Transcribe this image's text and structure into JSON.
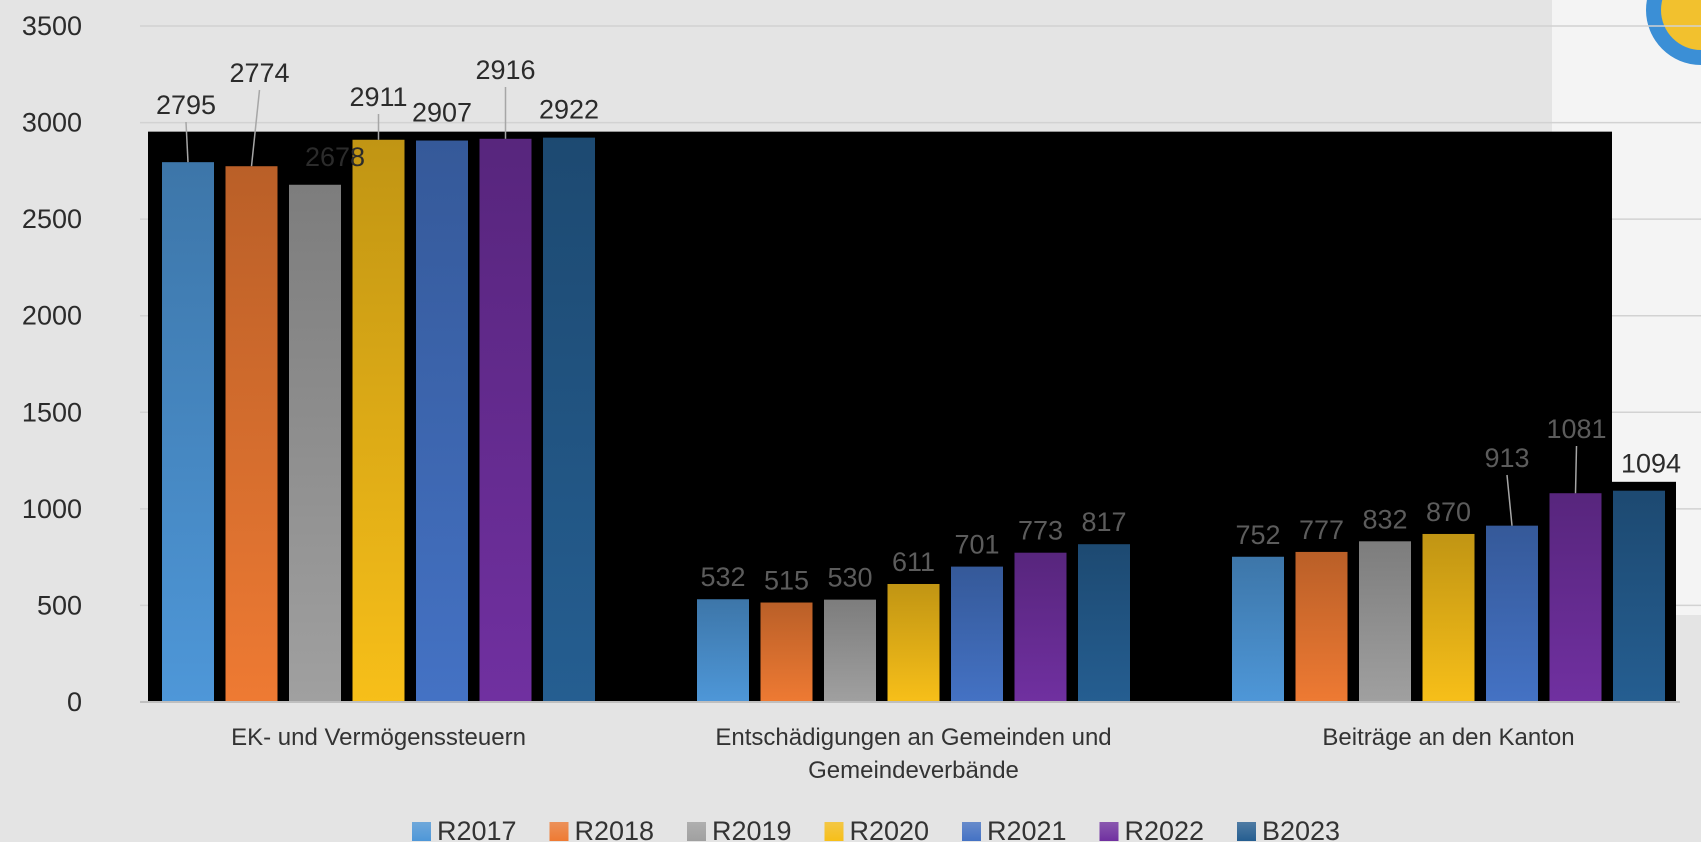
{
  "chart_data": {
    "type": "bar",
    "categories": [
      "EK- und Vermögenssteuern",
      "Entschädigungen an Gemeinden und Gemeindeverbände",
      "Beiträge an den Kanton"
    ],
    "series": [
      {
        "name": "R2017",
        "values": [
          2795,
          532,
          752
        ],
        "color": "#4e97d8"
      },
      {
        "name": "R2018",
        "values": [
          2774,
          515,
          777
        ],
        "color": "#ee7a33"
      },
      {
        "name": "R2019",
        "values": [
          2678,
          530,
          832
        ],
        "color": "#a0a0a0"
      },
      {
        "name": "R2020",
        "values": [
          2911,
          611,
          870
        ],
        "color": "#f7bf19"
      },
      {
        "name": "R2021",
        "values": [
          2907,
          701,
          913
        ],
        "color": "#4472c4"
      },
      {
        "name": "R2022",
        "values": [
          2916,
          773,
          1081
        ],
        "color": "#7030a0"
      },
      {
        "name": "B2023",
        "values": [
          2922,
          817,
          1094
        ],
        "color": "#255e91"
      }
    ],
    "y_ticks": [
      "0",
      "500",
      "1000",
      "1500",
      "2000",
      "2500",
      "3000",
      "3500"
    ],
    "ylim": [
      0,
      3500
    ],
    "grid": true,
    "legend": "bottom-center",
    "title": "",
    "xlabel": "",
    "ylabel": ""
  }
}
